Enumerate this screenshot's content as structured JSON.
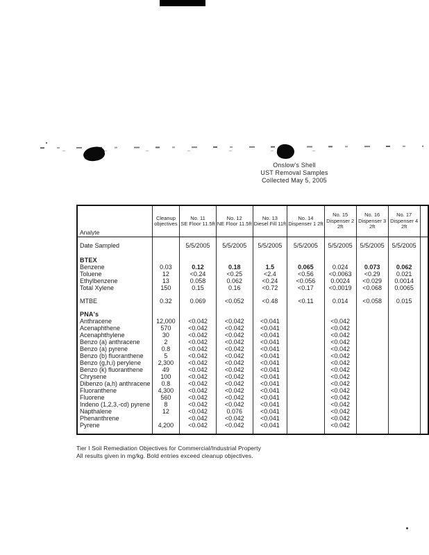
{
  "document": {
    "title_lines": [
      "Onslow's Shell",
      "UST Removal Samples",
      "Collected May 5, 2005"
    ]
  },
  "table": {
    "headers": [
      {
        "lines": [
          "Analyte"
        ]
      },
      {
        "lines": [
          "Cleanup",
          "objectives"
        ]
      },
      {
        "lines": [
          "No. 11",
          "SE Floor 11.5ft"
        ]
      },
      {
        "lines": [
          "No. 12",
          "NE Floor 11.5ft"
        ]
      },
      {
        "lines": [
          "No. 13",
          "Diesel Fill 11ft"
        ]
      },
      {
        "lines": [
          "No. 14",
          "Dispenser 1 2ft"
        ]
      },
      {
        "lines": [
          "No. 15",
          "Dispenser 2",
          "2ft"
        ]
      },
      {
        "lines": [
          "No. 16",
          "Dispenser 3",
          "2ft"
        ]
      },
      {
        "lines": [
          "No. 17",
          "Dispenser 4",
          "2ft"
        ]
      },
      {
        "lines": []
      }
    ],
    "rows": [
      {
        "kind": "date",
        "analyte": "Date Sampled",
        "objective": "",
        "values": [
          "5/5/2005",
          "5/5/2005",
          "5/5/2005",
          "5/5/2005",
          "5/5/2005",
          "5/5/2005",
          "5/5/2005"
        ]
      },
      {
        "kind": "spacer"
      },
      {
        "kind": "section",
        "analyte": "BTEX"
      },
      {
        "kind": "data",
        "analyte": "Benzene",
        "objective": "0.03",
        "values": [
          "0.12",
          "0.18",
          "1.5",
          "0.065",
          "0.024",
          "0.073",
          "0.062"
        ],
        "bold": [
          true,
          true,
          true,
          true,
          false,
          true,
          true
        ]
      },
      {
        "kind": "data",
        "analyte": "Toluene",
        "objective": "12",
        "values": [
          "<0.24",
          "<0.25",
          "<2.4",
          "<0.56",
          "<0.0063",
          "<0.29",
          "0.021"
        ]
      },
      {
        "kind": "data",
        "analyte": "Ethylbenzene",
        "objective": "13",
        "values": [
          "0.058",
          "0.062",
          "<0.24",
          "<0.056",
          "0.0024",
          "<0.029",
          "0.0014"
        ]
      },
      {
        "kind": "data",
        "analyte": "Total Xylene",
        "objective": "150",
        "values": [
          "0.15",
          "0.16",
          "<0.72",
          "<0.17",
          "<0.0019",
          "<0.068",
          "0.0065"
        ]
      },
      {
        "kind": "spacer"
      },
      {
        "kind": "data",
        "analyte": "MTBE",
        "objective": "0.32",
        "values": [
          "0.069",
          "<0.052",
          "<0.48",
          "<0.11",
          "0.014",
          "<0.058",
          "0.015"
        ]
      },
      {
        "kind": "spacer"
      },
      {
        "kind": "section",
        "analyte": "PNA's"
      },
      {
        "kind": "data",
        "analyte": "Anthracene",
        "objective": "12,000",
        "values": [
          "<0.042",
          "<0.042",
          "<0.041",
          "",
          "<0.042",
          "",
          ""
        ]
      },
      {
        "kind": "data",
        "analyte": "Acenaphthene",
        "objective": "570",
        "values": [
          "<0.042",
          "<0.042",
          "<0.041",
          "",
          "<0.042",
          "",
          ""
        ]
      },
      {
        "kind": "data",
        "analyte": "Acenaphthylene",
        "objective": "30",
        "values": [
          "<0.042",
          "<0.042",
          "<0.041",
          "",
          "<0.042",
          "",
          ""
        ]
      },
      {
        "kind": "data",
        "analyte": "Benzo (a) anthracene",
        "objective": "2",
        "values": [
          "<0.042",
          "<0.042",
          "<0.041",
          "",
          "<0.042",
          "",
          ""
        ]
      },
      {
        "kind": "data",
        "analyte": "Benzo (a) pyrene",
        "objective": "0.8",
        "values": [
          "<0.042",
          "<0.042",
          "<0.041",
          "",
          "<0.042",
          "",
          ""
        ]
      },
      {
        "kind": "data",
        "analyte": "Benzo (b) fluoranthene",
        "objective": "5",
        "values": [
          "<0.042",
          "<0.042",
          "<0.041",
          "",
          "<0.042",
          "",
          ""
        ]
      },
      {
        "kind": "data",
        "analyte": "Benzo (g,h,i) perylene",
        "objective": "2,300",
        "values": [
          "<0.042",
          "<0.042",
          "<0.041",
          "",
          "<0.042",
          "",
          ""
        ]
      },
      {
        "kind": "data",
        "analyte": "Benzo (k) fluoranthene",
        "objective": "49",
        "values": [
          "<0.042",
          "<0.042",
          "<0.041",
          "",
          "<0.042",
          "",
          ""
        ]
      },
      {
        "kind": "data",
        "analyte": "Chrysene",
        "objective": "100",
        "values": [
          "<0.042",
          "<0.042",
          "<0.041",
          "",
          "<0.042",
          "",
          ""
        ]
      },
      {
        "kind": "data",
        "analyte": "Dibenzo (a,h) anthracene",
        "objective": "0.8",
        "values": [
          "<0.042",
          "<0.042",
          "<0.041",
          "",
          "<0.042",
          "",
          ""
        ]
      },
      {
        "kind": "data",
        "analyte": "Fluoranthene",
        "objective": "4,300",
        "values": [
          "<0.042",
          "<0.042",
          "<0.041",
          "",
          "<0.042",
          "",
          ""
        ]
      },
      {
        "kind": "data",
        "analyte": "Fluorene",
        "objective": "560",
        "values": [
          "<0.042",
          "<0.042",
          "<0.041",
          "",
          "<0.042",
          "",
          ""
        ]
      },
      {
        "kind": "data",
        "analyte": "Indeno (1,2,3,-cd) pyrene",
        "objective": "8",
        "values": [
          "<0.042",
          "<0.042",
          "<0.041",
          "",
          "<0.042",
          "",
          ""
        ]
      },
      {
        "kind": "data",
        "analyte": "Napthalene",
        "objective": "12",
        "values": [
          "<0.042",
          "0.076",
          "<0.041",
          "",
          "<0.042",
          "",
          ""
        ]
      },
      {
        "kind": "data",
        "analyte": "Phenanthrene",
        "objective": "",
        "values": [
          "<0.042",
          "<0.042",
          "<0.041",
          "",
          "<0.042",
          "",
          ""
        ]
      },
      {
        "kind": "data",
        "analyte": "Pyrene",
        "objective": "4,200",
        "values": [
          "<0.042",
          "<0.042",
          "<0.041",
          "",
          "<0.042",
          "",
          ""
        ]
      },
      {
        "kind": "endpad"
      }
    ],
    "footnotes": [
      "Tier I Soil Remediation Objectives for Commercial/Industrial Property",
      "All results given in mg/kg.  Bold entries exceed cleanup objectives."
    ]
  }
}
